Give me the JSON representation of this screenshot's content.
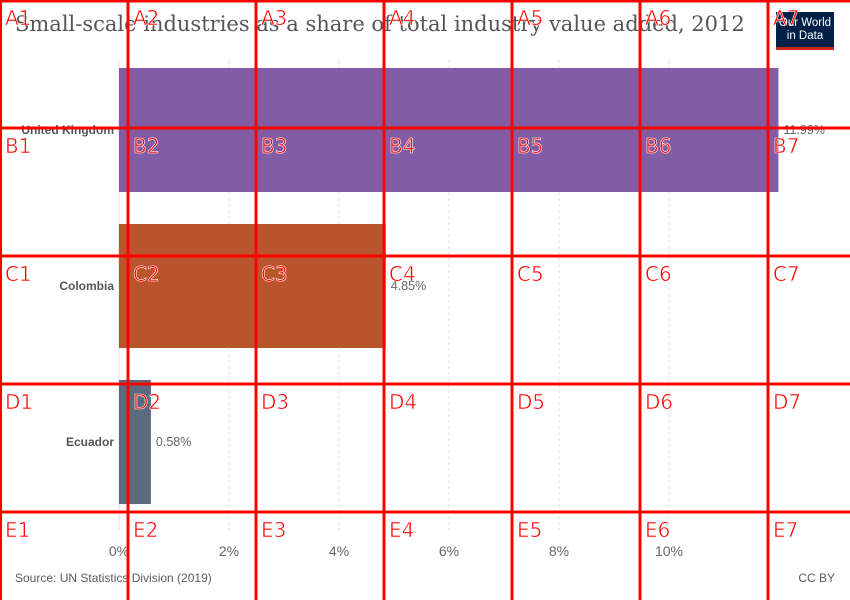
{
  "header": {
    "title": "Small-scale industries as a share of total industry value added, 2012",
    "logo_line1": "Our World",
    "logo_line2": "in Data"
  },
  "footer": {
    "source": "Source: UN Statistics Division (2019)",
    "license": "CC BY"
  },
  "chart_data": {
    "type": "bar",
    "orientation": "horizontal",
    "title": "Small-scale industries as a share of total industry value added, 2012",
    "categories": [
      "United Kingdom",
      "Colombia",
      "Ecuador"
    ],
    "values": [
      11.99,
      4.85,
      0.58
    ],
    "value_labels": [
      "11.99%",
      "4.85%",
      "0.58%"
    ],
    "colors": [
      "#825ca5",
      "#b9542c",
      "#5b6a7e"
    ],
    "xlim": [
      0,
      12
    ],
    "xticks": [
      0,
      2,
      4,
      6,
      8,
      10
    ],
    "xtick_labels": [
      "0%",
      "2%",
      "4%",
      "6%",
      "8%",
      "10%"
    ],
    "grid": "vertical dashed"
  },
  "overlay": {
    "color": "#ff0000",
    "rows": [
      "A",
      "B",
      "C",
      "D",
      "E"
    ],
    "cols": [
      "1",
      "2",
      "3",
      "4",
      "5",
      "6",
      "7"
    ]
  }
}
